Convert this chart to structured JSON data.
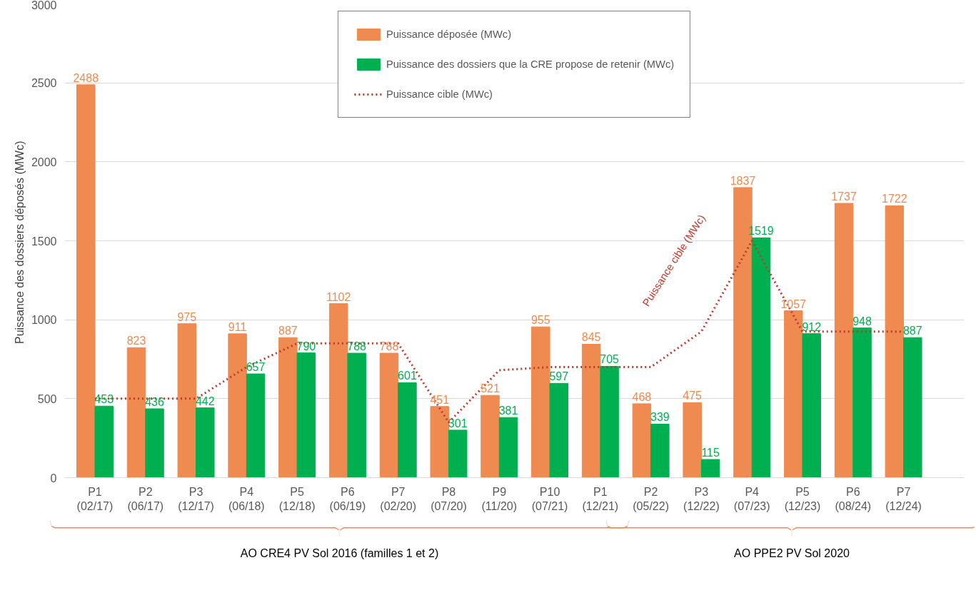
{
  "chart_data": {
    "type": "bar",
    "ylabel": "Puissance des dossiers déposés  (MWc)",
    "categories": [
      "P1\n(02/17)",
      "P2\n(06/17)",
      "P3\n(12/17)",
      "P4\n(06/18)",
      "P5\n(12/18)",
      "P6\n(06/19)",
      "P7\n(02/20)",
      "P8\n(07/20)",
      "P9\n(11/20)",
      "P10\n(07/21)",
      "P1\n(12/21)",
      "P2\n(05/22)",
      "P3\n(12/22)",
      "P4\n(07/23)",
      "P5\n(12/23)",
      "P6\n(08/24)",
      "P7\n(12/24)"
    ],
    "series": [
      {
        "name": "Puissance déposée (MWc)",
        "color": "#ef8a50",
        "values": [
          2488,
          823,
          975,
          911,
          887,
          1102,
          788,
          451,
          521,
          955,
          845,
          468,
          475,
          1837,
          1057,
          1737,
          1722
        ],
        "value_labels": [
          "2488",
          "823",
          "975",
          "911",
          "887",
          "1102",
          "788",
          "451",
          "521",
          "955",
          "845",
          "468",
          "475",
          "1837",
          "1057",
          "1737",
          "1722"
        ]
      },
      {
        "name": "Puissance des dossiers que la CRE propose de retenir (MWc)",
        "color": "#00b050",
        "values": [
          453,
          436,
          442,
          657,
          790,
          788,
          601,
          301,
          381,
          597,
          705,
          339,
          115,
          1519,
          912,
          948,
          887
        ],
        "value_labels": [
          "453",
          "436",
          "442",
          "657",
          "790",
          "788",
          "601",
          "301",
          "381",
          "597",
          "705",
          "339",
          "115",
          "1519",
          "912",
          "948",
          "887"
        ]
      },
      {
        "name": "Puissance cible (MWc)",
        "type": "line",
        "line_style": "dotted",
        "color": "#c0392b",
        "values": [
          500,
          500,
          500,
          700,
          850,
          850,
          850,
          350,
          680,
          700,
          700,
          700,
          925,
          1500,
          925,
          925,
          925
        ]
      }
    ],
    "ylim": [
      0,
      3000
    ],
    "yticks": [
      0,
      500,
      1000,
      1500,
      2000,
      2500,
      3000
    ],
    "grid": "y",
    "legend": "top",
    "annotations": [
      "Puissance cible (MWc)",
      "AO CRE4 PV Sol 2016 (familles 1 et 2)",
      "AO PPE2 PV Sol 2020"
    ]
  }
}
